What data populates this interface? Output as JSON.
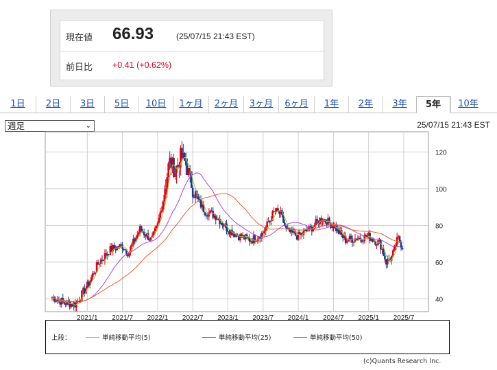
{
  "quote": {
    "price_label": "現在値",
    "price": "66.93",
    "time": "(25/07/15 21:43 EST)",
    "change_label": "前日比",
    "change": "+0.41 (+0.62%)"
  },
  "tabs": [
    "1日",
    "2日",
    "3日",
    "5日",
    "10日",
    "1ヶ月",
    "2ヶ月",
    "3ヶ月",
    "6ヶ月",
    "1年",
    "2年",
    "3年",
    "5年",
    "10年"
  ],
  "active_tab": "5年",
  "period_select": "週足",
  "timestamp": "25/07/15 21:43 EST",
  "legend": {
    "section": "上段：",
    "items": [
      {
        "label": "単純移動平均(5)",
        "color": "#9acd32"
      },
      {
        "label": "単純移動平均(25)",
        "color": "#b042e0"
      },
      {
        "label": "単純移動平均(50)",
        "color": "#f05a28"
      }
    ]
  },
  "credit": "(c)Quants Research Inc.",
  "colors": {
    "up": "#e60012",
    "down": "#1a3a8f"
  },
  "chart_data": {
    "type": "candlestick",
    "x_ticks": [
      "2021/1",
      "2021/7",
      "2022/1",
      "2022/7",
      "2023/1",
      "2023/7",
      "2024/1",
      "2024/7",
      "2025/1",
      "2025/7"
    ],
    "x_start": "2020/7",
    "x_end": "2025/7",
    "y_ticks": [
      40,
      60,
      80,
      100,
      120
    ],
    "ylim": [
      33,
      131
    ],
    "grid": true,
    "close_anchors": [
      [
        "2020/7",
        41
      ],
      [
        "2020/9",
        38
      ],
      [
        "2020/11",
        37
      ],
      [
        "2021/1",
        47
      ],
      [
        "2021/3",
        60
      ],
      [
        "2021/5",
        67
      ],
      [
        "2021/7",
        69
      ],
      [
        "2021/8",
        65
      ],
      [
        "2021/10",
        78
      ],
      [
        "2021/12",
        72
      ],
      [
        "2022/1",
        80
      ],
      [
        "2022/2",
        95
      ],
      [
        "2022/3",
        115
      ],
      [
        "2022/4",
        110
      ],
      [
        "2022/5",
        118
      ],
      [
        "2022/6",
        112
      ],
      [
        "2022/7",
        100
      ],
      [
        "2022/8",
        93
      ],
      [
        "2022/9",
        88
      ],
      [
        "2022/11",
        85
      ],
      [
        "2023/1",
        78
      ],
      [
        "2023/3",
        74
      ],
      [
        "2023/5",
        72
      ],
      [
        "2023/7",
        76
      ],
      [
        "2023/9",
        88
      ],
      [
        "2023/10",
        86
      ],
      [
        "2023/11",
        77
      ],
      [
        "2024/1",
        74
      ],
      [
        "2024/3",
        78
      ],
      [
        "2024/5",
        84
      ],
      [
        "2024/7",
        80
      ],
      [
        "2024/9",
        72
      ],
      [
        "2024/11",
        73
      ],
      [
        "2025/1",
        74
      ],
      [
        "2025/3",
        70
      ],
      [
        "2025/4",
        60
      ],
      [
        "2025/5",
        63
      ],
      [
        "2025/6",
        73
      ],
      [
        "2025/7",
        67
      ]
    ],
    "sma": [
      {
        "name": "単純移動平均(5)",
        "window": 5
      },
      {
        "name": "単純移動平均(25)",
        "window": 25
      },
      {
        "name": "単純移動平均(50)",
        "window": 50
      }
    ]
  }
}
